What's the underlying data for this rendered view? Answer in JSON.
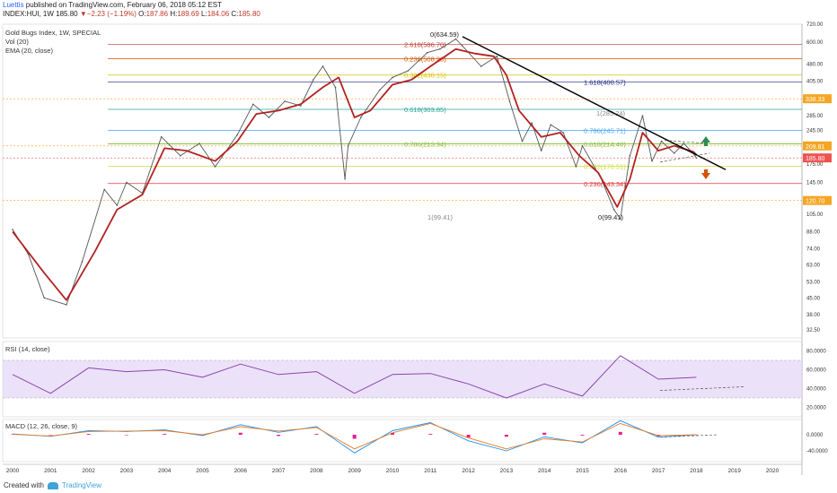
{
  "header": {
    "author": "Luettis",
    "published": " published on TradingView.com, February 06, 2018 05:12 EST",
    "symbol": "INDEX:HUI, 1W",
    "price": "185.80",
    "change": "−2.23 (−1.19%)",
    "o_label": "O:",
    "o": "187.86",
    "h_label": "H:",
    "h": "189.69",
    "l_label": "L:",
    "l": "184.06",
    "c_label": "C:",
    "c": "185.80"
  },
  "legends": {
    "main": "Gold Bugs Index, 1W, SPECIAL",
    "vol": "Vol (20)",
    "ema": "EMA (20, close)",
    "rsi": "RSI (14, close)",
    "macd": "MACD (12, 26, close, 9)"
  },
  "footer": {
    "created": "Created with",
    "brand": "TradingView"
  },
  "colors": {
    "price": "#555555",
    "ema": "#b22222",
    "trend": "#000000",
    "rsi": "#8e44ad",
    "rsi_band": "#e3d6f7",
    "macd": "#1e90ff",
    "signal": "#e67e22",
    "hist": "#e91e8c",
    "up_arrow": "#2e8b57",
    "down_arrow": "#d35400"
  },
  "chart_data": [
    {
      "type": "line",
      "title": "Gold Bugs Index, 1W, SPECIAL",
      "scale": "log",
      "ylim": [
        30,
        720
      ],
      "x_ticks": [
        "2000",
        "2001",
        "2002",
        "2003",
        "2004",
        "2005",
        "2006",
        "2007",
        "2008",
        "2009",
        "2010",
        "2011",
        "2012",
        "2013",
        "2014",
        "2015",
        "2016",
        "2017",
        "2018",
        "2019",
        "2020"
      ],
      "y_ticks": [
        "720.00",
        "600.00",
        "480.00",
        "405.00",
        "340.00",
        "285.00",
        "245.00",
        "205.00",
        "175.00",
        "145.00",
        "120.00",
        "105.00",
        "88.00",
        "74.00",
        "63.00",
        "53.00",
        "45.00",
        "38.00",
        "32.50"
      ],
      "price_tags": [
        {
          "label": "338.33",
          "value": 338.33,
          "color": "#f5a623"
        },
        {
          "label": "209.81",
          "value": 209.81,
          "color": "#f5a623"
        },
        {
          "label": "185.80",
          "value": 185.8,
          "color": "#ef5350"
        },
        {
          "label": "120.70",
          "value": 120.7,
          "color": "#f5a623"
        }
      ],
      "series": [
        {
          "name": "HUI",
          "x": [
            "2000-01",
            "2000-06",
            "2000-11",
            "2001-06",
            "2001-11",
            "2002-06",
            "2002-10",
            "2003-01",
            "2003-06",
            "2003-12",
            "2004-06",
            "2004-12",
            "2005-05",
            "2005-12",
            "2006-05",
            "2006-10",
            "2007-03",
            "2007-08",
            "2007-12",
            "2008-03",
            "2008-07",
            "2008-10",
            "2008-11",
            "2009-03",
            "2009-09",
            "2010-01",
            "2010-06",
            "2010-12",
            "2011-04",
            "2011-09",
            "2011-11",
            "2012-05",
            "2012-10",
            "2013-02",
            "2013-06",
            "2013-09",
            "2013-12",
            "2014-03",
            "2014-07",
            "2014-11",
            "2015-01",
            "2015-07",
            "2015-11",
            "2016-01",
            "2016-04",
            "2016-08",
            "2016-11",
            "2017-02",
            "2017-06",
            "2017-09",
            "2017-12",
            "2018-01"
          ],
          "values": [
            90,
            70,
            45,
            42,
            65,
            135,
            115,
            145,
            130,
            230,
            190,
            215,
            170,
            235,
            320,
            280,
            330,
            315,
            410,
            470,
            380,
            150,
            210,
            280,
            370,
            420,
            450,
            540,
            560,
            620,
            580,
            470,
            520,
            330,
            220,
            265,
            200,
            260,
            240,
            170,
            210,
            150,
            110,
            100,
            190,
            285,
            180,
            220,
            195,
            215,
            195,
            185.8
          ]
        },
        {
          "name": "EMA (20, close)",
          "x": [
            "2000-01",
            "2000-11",
            "2001-06",
            "2002-03",
            "2002-10",
            "2003-06",
            "2004-01",
            "2004-08",
            "2005-05",
            "2005-12",
            "2006-06",
            "2007-01",
            "2007-08",
            "2008-03",
            "2008-08",
            "2009-01",
            "2009-06",
            "2010-01",
            "2010-07",
            "2011-01",
            "2011-09",
            "2012-03",
            "2012-09",
            "2013-01",
            "2013-05",
            "2013-12",
            "2014-06",
            "2014-12",
            "2015-06",
            "2015-12",
            "2016-04",
            "2016-08",
            "2017-01",
            "2017-06",
            "2017-12",
            "2018-01"
          ],
          "values": [
            88,
            58,
            44,
            72,
            110,
            128,
            205,
            200,
            180,
            220,
            290,
            300,
            320,
            380,
            420,
            280,
            300,
            390,
            410,
            470,
            560,
            535,
            520,
            430,
            300,
            230,
            240,
            190,
            160,
            113,
            150,
            240,
            200,
            210,
            198,
            192
          ]
        }
      ],
      "fibonacci": [
        {
          "label": "2.618(586.70)",
          "value": 586.7
        },
        {
          "label": "0.236(508.28)",
          "value": 508.28
        },
        {
          "label": "0.382(430.15)",
          "value": 430.15
        },
        {
          "label": "1.618(400.57)",
          "value": 400.57
        },
        {
          "label": "0.618(303.85)",
          "value": 303.85
        },
        {
          "label": "0.786(245.71)",
          "value": 245.71
        },
        {
          "label": "0.786(213.94)",
          "value": 213.94
        },
        {
          "label": "0.618(214.48)",
          "value": 214.48
        },
        {
          "label": "0.382(170.51)",
          "value": 170.51
        },
        {
          "label": "0.236(143.34)",
          "value": 143.34
        }
      ],
      "annotations": [
        "0(634.59)",
        "1(285.24)",
        "1(99.41)",
        "0(99.41)"
      ]
    },
    {
      "type": "line",
      "title": "RSI (14, close)",
      "ylim": [
        10,
        90
      ],
      "y_ticks": [
        "80.0000",
        "60.0000",
        "40.0000",
        "20.0000"
      ],
      "band": [
        30,
        70
      ],
      "series": [
        {
          "name": "RSI",
          "x": [
            "2000",
            "2001",
            "2002",
            "2003",
            "2004",
            "2005",
            "2006",
            "2007",
            "2008",
            "2009",
            "2010",
            "2011",
            "2012",
            "2013",
            "2014",
            "2015",
            "2016",
            "2017",
            "2018"
          ],
          "values": [
            55,
            35,
            62,
            58,
            60,
            52,
            66,
            55,
            58,
            35,
            55,
            56,
            45,
            30,
            45,
            32,
            75,
            50,
            52
          ]
        }
      ]
    },
    {
      "type": "line",
      "title": "MACD (12, 26, close, 9)",
      "y_ticks": [
        "0.0000",
        "-40.0000"
      ],
      "series": [
        {
          "name": "MACD",
          "x": [
            "2000",
            "2001",
            "2002",
            "2003",
            "2004",
            "2005",
            "2006",
            "2007",
            "2008",
            "2009",
            "2010",
            "2011",
            "2012",
            "2013",
            "2014",
            "2015",
            "2016",
            "2017",
            "2018"
          ],
          "values": [
            2,
            -4,
            10,
            8,
            12,
            -2,
            25,
            6,
            20,
            -45,
            10,
            30,
            -15,
            -40,
            -5,
            -20,
            35,
            -6,
            0
          ]
        },
        {
          "name": "Signal",
          "x": [
            "2000",
            "2001",
            "2002",
            "2003",
            "2004",
            "2005",
            "2006",
            "2007",
            "2008",
            "2009",
            "2010",
            "2011",
            "2012",
            "2013",
            "2014",
            "2015",
            "2016",
            "2017",
            "2018"
          ],
          "values": [
            1,
            -3,
            8,
            9,
            10,
            0,
            20,
            9,
            18,
            -35,
            5,
            28,
            -8,
            -35,
            -10,
            -18,
            28,
            -2,
            0
          ]
        }
      ]
    }
  ]
}
